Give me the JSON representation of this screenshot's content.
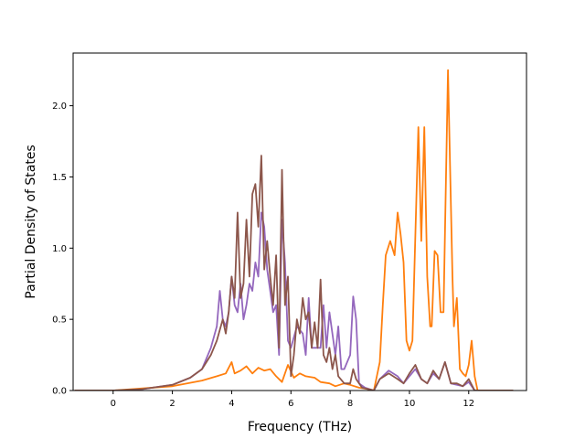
{
  "chart_data": {
    "type": "line",
    "title": "",
    "xlabel": "Frequency (THz)",
    "ylabel": "Partial Density of States",
    "xlim": [
      -1.35,
      13.95
    ],
    "ylim": [
      0.0,
      2.37
    ],
    "xticks": [
      0,
      2,
      4,
      6,
      8,
      10,
      12
    ],
    "yticks": [
      0.0,
      0.5,
      1.0,
      1.5,
      2.0
    ],
    "xtick_labels": [
      "0",
      "2",
      "4",
      "6",
      "8",
      "10",
      "12"
    ],
    "ytick_labels": [
      "0.0",
      "0.5",
      "1.0",
      "1.5",
      "2.0"
    ],
    "grid": false,
    "legend": "none",
    "series": [
      {
        "color": "#9467bd",
        "points": [
          [
            -1.3,
            0
          ],
          [
            0,
            0
          ],
          [
            1,
            0.01
          ],
          [
            2,
            0.04
          ],
          [
            2.6,
            0.09
          ],
          [
            3,
            0.15
          ],
          [
            3.3,
            0.3
          ],
          [
            3.5,
            0.45
          ],
          [
            3.6,
            0.7
          ],
          [
            3.7,
            0.5
          ],
          [
            3.8,
            0.45
          ],
          [
            3.9,
            0.55
          ],
          [
            4.0,
            0.8
          ],
          [
            4.1,
            0.6
          ],
          [
            4.2,
            0.55
          ],
          [
            4.3,
            0.75
          ],
          [
            4.4,
            0.5
          ],
          [
            4.5,
            0.6
          ],
          [
            4.6,
            0.75
          ],
          [
            4.7,
            0.7
          ],
          [
            4.8,
            0.9
          ],
          [
            4.9,
            0.8
          ],
          [
            5.0,
            1.25
          ],
          [
            5.1,
            1.15
          ],
          [
            5.2,
            0.85
          ],
          [
            5.3,
            0.7
          ],
          [
            5.4,
            0.55
          ],
          [
            5.5,
            0.6
          ],
          [
            5.6,
            0.25
          ],
          [
            5.7,
            1.2
          ],
          [
            5.8,
            0.9
          ],
          [
            5.9,
            0.35
          ],
          [
            6.0,
            0.3
          ],
          [
            6.2,
            0.45
          ],
          [
            6.4,
            0.4
          ],
          [
            6.5,
            0.25
          ],
          [
            6.6,
            0.65
          ],
          [
            6.7,
            0.3
          ],
          [
            6.8,
            0.3
          ],
          [
            7.0,
            0.3
          ],
          [
            7.1,
            0.6
          ],
          [
            7.2,
            0.3
          ],
          [
            7.3,
            0.55
          ],
          [
            7.5,
            0.25
          ],
          [
            7.6,
            0.45
          ],
          [
            7.7,
            0.15
          ],
          [
            7.8,
            0.15
          ],
          [
            8.0,
            0.25
          ],
          [
            8.1,
            0.66
          ],
          [
            8.2,
            0.5
          ],
          [
            8.3,
            0.05
          ],
          [
            8.5,
            0.02
          ],
          [
            8.8,
            0
          ],
          [
            9.0,
            0.08
          ],
          [
            9.3,
            0.14
          ],
          [
            9.6,
            0.1
          ],
          [
            9.8,
            0.05
          ],
          [
            10.0,
            0.1
          ],
          [
            10.2,
            0.15
          ],
          [
            10.4,
            0.08
          ],
          [
            10.6,
            0.05
          ],
          [
            10.8,
            0.12
          ],
          [
            11.0,
            0.08
          ],
          [
            11.2,
            0.2
          ],
          [
            11.4,
            0.05
          ],
          [
            11.6,
            0.04
          ],
          [
            11.8,
            0.03
          ],
          [
            12.0,
            0.06
          ],
          [
            12.2,
            0
          ],
          [
            13.5,
            0
          ]
        ]
      },
      {
        "color": "#ff7f0e",
        "points": [
          [
            -1.3,
            0
          ],
          [
            0,
            0
          ],
          [
            2,
            0.03
          ],
          [
            3,
            0.07
          ],
          [
            3.5,
            0.1
          ],
          [
            3.8,
            0.12
          ],
          [
            4.0,
            0.2
          ],
          [
            4.1,
            0.12
          ],
          [
            4.3,
            0.14
          ],
          [
            4.5,
            0.17
          ],
          [
            4.7,
            0.12
          ],
          [
            4.9,
            0.16
          ],
          [
            5.1,
            0.14
          ],
          [
            5.3,
            0.15
          ],
          [
            5.5,
            0.1
          ],
          [
            5.7,
            0.06
          ],
          [
            5.9,
            0.18
          ],
          [
            6.1,
            0.09
          ],
          [
            6.3,
            0.12
          ],
          [
            6.5,
            0.1
          ],
          [
            6.8,
            0.09
          ],
          [
            7.0,
            0.06
          ],
          [
            7.3,
            0.05
          ],
          [
            7.5,
            0.03
          ],
          [
            7.8,
            0.05
          ],
          [
            8.0,
            0.04
          ],
          [
            8.3,
            0.02
          ],
          [
            8.6,
            0.01
          ],
          [
            8.8,
            0
          ],
          [
            9.0,
            0.2
          ],
          [
            9.1,
            0.6
          ],
          [
            9.2,
            0.95
          ],
          [
            9.35,
            1.05
          ],
          [
            9.5,
            0.95
          ],
          [
            9.6,
            1.25
          ],
          [
            9.7,
            1.1
          ],
          [
            9.8,
            0.9
          ],
          [
            9.9,
            0.35
          ],
          [
            10.0,
            0.28
          ],
          [
            10.1,
            0.35
          ],
          [
            10.3,
            1.85
          ],
          [
            10.4,
            1.05
          ],
          [
            10.5,
            1.85
          ],
          [
            10.6,
            0.8
          ],
          [
            10.7,
            0.45
          ],
          [
            10.75,
            0.45
          ],
          [
            10.85,
            0.98
          ],
          [
            10.95,
            0.95
          ],
          [
            11.05,
            0.55
          ],
          [
            11.15,
            0.55
          ],
          [
            11.3,
            2.25
          ],
          [
            11.45,
            0.8
          ],
          [
            11.5,
            0.45
          ],
          [
            11.6,
            0.65
          ],
          [
            11.7,
            0.15
          ],
          [
            11.8,
            0.12
          ],
          [
            11.9,
            0.1
          ],
          [
            12.0,
            0.18
          ],
          [
            12.1,
            0.35
          ],
          [
            12.2,
            0.1
          ],
          [
            12.3,
            0
          ],
          [
            13.5,
            0
          ]
        ]
      },
      {
        "color": "#8c564b",
        "points": [
          [
            -1.3,
            0
          ],
          [
            0,
            0
          ],
          [
            1,
            0.01
          ],
          [
            2,
            0.04
          ],
          [
            2.6,
            0.09
          ],
          [
            3,
            0.15
          ],
          [
            3.3,
            0.25
          ],
          [
            3.5,
            0.35
          ],
          [
            3.7,
            0.5
          ],
          [
            3.8,
            0.4
          ],
          [
            3.9,
            0.55
          ],
          [
            4.0,
            0.8
          ],
          [
            4.1,
            0.65
          ],
          [
            4.2,
            1.25
          ],
          [
            4.3,
            0.65
          ],
          [
            4.4,
            0.75
          ],
          [
            4.5,
            1.2
          ],
          [
            4.6,
            0.8
          ],
          [
            4.7,
            1.38
          ],
          [
            4.8,
            1.45
          ],
          [
            4.9,
            1.15
          ],
          [
            5.0,
            1.65
          ],
          [
            5.1,
            0.85
          ],
          [
            5.2,
            1.05
          ],
          [
            5.3,
            0.8
          ],
          [
            5.4,
            0.6
          ],
          [
            5.5,
            0.95
          ],
          [
            5.6,
            0.3
          ],
          [
            5.7,
            1.55
          ],
          [
            5.8,
            0.6
          ],
          [
            5.9,
            0.8
          ],
          [
            6.0,
            0.1
          ],
          [
            6.1,
            0.25
          ],
          [
            6.2,
            0.5
          ],
          [
            6.3,
            0.4
          ],
          [
            6.4,
            0.65
          ],
          [
            6.5,
            0.5
          ],
          [
            6.6,
            0.55
          ],
          [
            6.7,
            0.3
          ],
          [
            6.8,
            0.48
          ],
          [
            6.9,
            0.3
          ],
          [
            7.0,
            0.78
          ],
          [
            7.1,
            0.25
          ],
          [
            7.2,
            0.2
          ],
          [
            7.3,
            0.3
          ],
          [
            7.4,
            0.15
          ],
          [
            7.5,
            0.25
          ],
          [
            7.6,
            0.1
          ],
          [
            7.8,
            0.05
          ],
          [
            8.0,
            0.05
          ],
          [
            8.1,
            0.15
          ],
          [
            8.2,
            0.08
          ],
          [
            8.4,
            0.02
          ],
          [
            8.8,
            0
          ],
          [
            9.0,
            0.08
          ],
          [
            9.3,
            0.12
          ],
          [
            9.6,
            0.08
          ],
          [
            9.8,
            0.05
          ],
          [
            10.0,
            0.12
          ],
          [
            10.2,
            0.18
          ],
          [
            10.4,
            0.08
          ],
          [
            10.6,
            0.05
          ],
          [
            10.8,
            0.14
          ],
          [
            11.0,
            0.08
          ],
          [
            11.2,
            0.2
          ],
          [
            11.4,
            0.05
          ],
          [
            11.6,
            0.05
          ],
          [
            11.8,
            0.03
          ],
          [
            12.0,
            0.08
          ],
          [
            12.2,
            0
          ],
          [
            13.5,
            0
          ]
        ]
      }
    ]
  }
}
